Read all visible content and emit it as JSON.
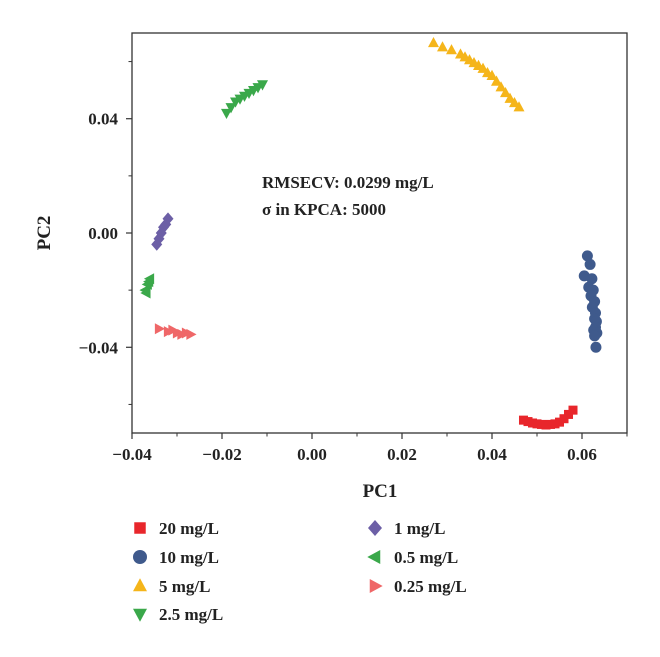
{
  "chart_data": {
    "type": "scatter",
    "xlabel": "PC1",
    "ylabel": "PC2",
    "xlim": [
      -0.04,
      0.07
    ],
    "ylim": [
      -0.07,
      0.07
    ],
    "x_ticks": [
      -0.04,
      -0.02,
      0.0,
      0.02,
      0.04,
      0.06
    ],
    "x_tick_labels": [
      "−0.04",
      "−0.02",
      "0.00",
      "0.02",
      "0.04",
      "0.06"
    ],
    "y_ticks": [
      -0.04,
      0.0,
      0.04
    ],
    "y_tick_labels": [
      "−0.04",
      "0.00",
      "0.04"
    ],
    "grid": false,
    "legend_position": "below",
    "annotations": [
      "RMSECV: 0.0299 mg/L",
      "σ in KPCA: 5000"
    ],
    "series": [
      {
        "name": "20 mg/L",
        "marker": "square",
        "color": "#e8262b",
        "x": [
          0.047,
          0.048,
          0.049,
          0.05,
          0.051,
          0.052,
          0.053,
          0.054,
          0.055,
          0.056,
          0.057,
          0.058
        ],
        "y": [
          -0.0655,
          -0.066,
          -0.0665,
          -0.0668,
          -0.067,
          -0.0672,
          -0.067,
          -0.0668,
          -0.0662,
          -0.065,
          -0.0635,
          -0.062
        ]
      },
      {
        "name": "10 mg/L",
        "marker": "circle",
        "color": "#3f5a8c",
        "x": [
          0.0612,
          0.0618,
          0.0605,
          0.0622,
          0.0615,
          0.0625,
          0.062,
          0.0628,
          0.0623,
          0.063,
          0.0628,
          0.0632,
          0.063,
          0.0626,
          0.0633,
          0.0628,
          0.0631
        ],
        "y": [
          -0.008,
          -0.011,
          -0.015,
          -0.016,
          -0.019,
          -0.02,
          -0.022,
          -0.024,
          -0.026,
          -0.028,
          -0.03,
          -0.031,
          -0.033,
          -0.034,
          -0.035,
          -0.036,
          -0.04
        ]
      },
      {
        "name": "5 mg/L",
        "marker": "triangle-up",
        "color": "#f5b51a",
        "x": [
          0.027,
          0.029,
          0.031,
          0.033,
          0.034,
          0.035,
          0.036,
          0.037,
          0.038,
          0.039,
          0.04,
          0.041,
          0.042,
          0.043,
          0.044,
          0.045,
          0.046
        ],
        "y": [
          0.0665,
          0.065,
          0.064,
          0.0625,
          0.0615,
          0.0605,
          0.0595,
          0.0585,
          0.0575,
          0.056,
          0.055,
          0.053,
          0.051,
          0.049,
          0.047,
          0.0455,
          0.044
        ]
      },
      {
        "name": "2.5 mg/L",
        "marker": "triangle-down",
        "color": "#3aa84a",
        "x": [
          -0.019,
          -0.018,
          -0.017,
          -0.016,
          -0.015,
          -0.014,
          -0.013,
          -0.012,
          -0.011
        ],
        "y": [
          0.042,
          0.044,
          0.046,
          0.047,
          0.048,
          0.049,
          0.05,
          0.051,
          0.052
        ]
      },
      {
        "name": "1 mg/L",
        "marker": "diamond",
        "color": "#6c5fa6",
        "x": [
          -0.0345,
          -0.034,
          -0.0335,
          -0.033,
          -0.0325,
          -0.032
        ],
        "y": [
          -0.004,
          -0.002,
          0.0,
          0.002,
          0.003,
          0.005
        ]
      },
      {
        "name": "0.5 mg/L",
        "marker": "triangle-left",
        "color": "#3aa84a",
        "x": [
          -0.037,
          -0.0365,
          -0.036,
          -0.0368,
          -0.0362
        ],
        "y": [
          -0.02,
          -0.018,
          -0.016,
          -0.021,
          -0.017
        ]
      },
      {
        "name": "0.25 mg/L",
        "marker": "triangle-right",
        "color": "#ef6768",
        "x": [
          -0.034,
          -0.032,
          -0.031,
          -0.03,
          -0.029,
          -0.028,
          -0.027
        ],
        "y": [
          -0.0335,
          -0.0345,
          -0.034,
          -0.035,
          -0.0355,
          -0.035,
          -0.0355
        ]
      }
    ]
  }
}
